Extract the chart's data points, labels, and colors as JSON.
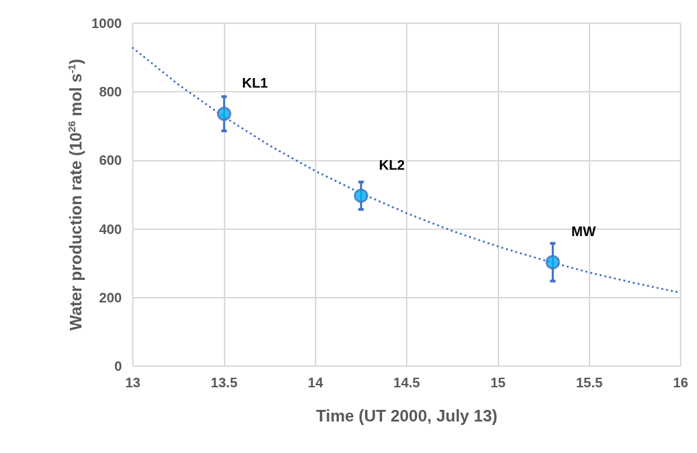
{
  "chart_data": {
    "type": "scatter",
    "xlabel": "Time (UT 2000, July 13)",
    "ylabel": "Water production rate (10$^{26}$ mol s$^{-1}$)",
    "xlim": [
      13,
      16
    ],
    "xticks": [
      13,
      13.5,
      14,
      14.5,
      15,
      15.5,
      16
    ],
    "ylim": [
      0,
      1000
    ],
    "yticks": [
      0,
      200,
      400,
      600,
      800,
      1000
    ],
    "grid": true,
    "series": [
      {
        "color": "#00b0f0",
        "x": [
          13.5,
          14.25,
          15.3
        ],
        "values": [
          736,
          497,
          303
        ],
        "errors": [
          50,
          40,
          55
        ],
        "marker": "circle"
      },
      {
        "type": "line",
        "color": "#4472c4",
        "line_style": "dotted",
        "marker": "none",
        "x": [
          13,
          13.25,
          13.5,
          13.75,
          14,
          14.25,
          14.5,
          14.75,
          15,
          15.25,
          15.5,
          15.75,
          16
        ],
        "values": [
          928,
          821,
          727,
          643,
          569,
          504,
          446,
          394,
          349,
          309,
          273,
          242,
          214
        ]
      }
    ],
    "annotations": [
      {
        "text": "KL1",
        "x": 13.5,
        "y": 736
      },
      {
        "text": "KL2",
        "x": 14.25,
        "y": 497
      },
      {
        "text": "MW",
        "x": 15.3,
        "y": 303
      }
    ]
  }
}
